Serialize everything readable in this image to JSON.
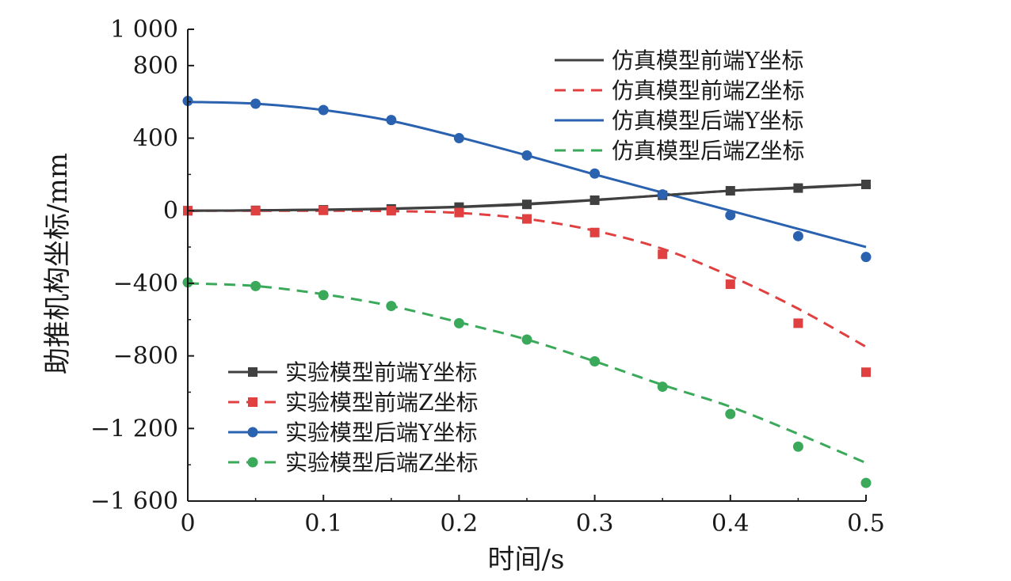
{
  "chart_data": {
    "type": "line",
    "xlabel": "时间/s",
    "ylabel": "助推机构坐标/mm",
    "xlim": [
      0,
      0.5
    ],
    "ylim": [
      -1600,
      1000
    ],
    "grid": false,
    "x_ticks": [
      0,
      0.1,
      0.2,
      0.3,
      0.4,
      0.5
    ],
    "x_tick_labels": [
      "0",
      "0.1",
      "0.2",
      "0.3",
      "0.4",
      "0.5"
    ],
    "y_ticks": [
      1000,
      800,
      400,
      0,
      -400,
      -800,
      -1200,
      -1600
    ],
    "y_tick_labels": [
      "1 000",
      "800",
      "400",
      "0",
      "−400",
      "−800",
      "−1 200",
      "−1 600"
    ],
    "legends": [
      {
        "placement": "top-right",
        "series": [
          0,
          1,
          2,
          3
        ]
      },
      {
        "placement": "bottom-left",
        "series": [
          4,
          5,
          6,
          7
        ]
      }
    ],
    "series": [
      {
        "name": "仿真模型前端Y坐标",
        "kind": "line",
        "color": "#404040",
        "dash": "solid",
        "x": [
          0,
          0.05,
          0.1,
          0.15,
          0.2,
          0.25,
          0.3,
          0.35,
          0.4,
          0.45,
          0.5
        ],
        "y": [
          0,
          2,
          6,
          12,
          22,
          38,
          60,
          85,
          110,
          128,
          145
        ]
      },
      {
        "name": "仿真模型前端Z坐标",
        "kind": "line",
        "color": "#e04040",
        "dash": "dashed",
        "x": [
          0,
          0.05,
          0.1,
          0.15,
          0.2,
          0.25,
          0.3,
          0.35,
          0.4,
          0.45,
          0.5
        ],
        "y": [
          0,
          0,
          0,
          -2,
          -12,
          -45,
          -110,
          -210,
          -360,
          -540,
          -750
        ]
      },
      {
        "name": "仿真模型后端Y坐标",
        "kind": "line",
        "color": "#2a62b0",
        "dash": "solid",
        "x": [
          0,
          0.05,
          0.1,
          0.15,
          0.2,
          0.25,
          0.3,
          0.35,
          0.4,
          0.45,
          0.5
        ],
        "y": [
          600,
          590,
          555,
          495,
          405,
          305,
          200,
          100,
          0,
          -100,
          -200
        ]
      },
      {
        "name": "仿真模型后端Z坐标",
        "kind": "line",
        "color": "#3aaa5a",
        "dash": "dashed",
        "x": [
          0,
          0.05,
          0.1,
          0.15,
          0.2,
          0.25,
          0.3,
          0.35,
          0.4,
          0.45,
          0.5
        ],
        "y": [
          -400,
          -415,
          -460,
          -525,
          -615,
          -710,
          -830,
          -960,
          -1080,
          -1230,
          -1390
        ]
      },
      {
        "name": "实验模型前端Y坐标",
        "kind": "line-marker",
        "marker": "square",
        "color": "#404040",
        "dash": "solid",
        "x": [
          0,
          0.05,
          0.1,
          0.15,
          0.2,
          0.25,
          0.3,
          0.35,
          0.4,
          0.45,
          0.5
        ],
        "y": [
          0,
          2,
          5,
          10,
          20,
          35,
          58,
          85,
          110,
          125,
          145
        ]
      },
      {
        "name": "实验模型前端Z坐标",
        "kind": "marker",
        "marker": "square",
        "color": "#e04040",
        "dash": "dashed",
        "x": [
          0,
          0.05,
          0.1,
          0.15,
          0.2,
          0.25,
          0.3,
          0.35,
          0.4,
          0.45,
          0.5
        ],
        "y": [
          0,
          0,
          2,
          0,
          -10,
          -45,
          -120,
          -240,
          -405,
          -620,
          -890
        ]
      },
      {
        "name": "实验模型后端Y坐标",
        "kind": "marker",
        "marker": "circle",
        "color": "#2a62b0",
        "dash": "solid",
        "x": [
          0,
          0.05,
          0.1,
          0.15,
          0.2,
          0.25,
          0.3,
          0.35,
          0.4,
          0.45,
          0.5
        ],
        "y": [
          605,
          590,
          555,
          500,
          400,
          305,
          205,
          90,
          -25,
          -140,
          -255
        ]
      },
      {
        "name": "实验模型后端Z坐标",
        "kind": "marker",
        "marker": "circle",
        "color": "#3aaa5a",
        "dash": "dashed",
        "x": [
          0,
          0.05,
          0.1,
          0.15,
          0.2,
          0.25,
          0.3,
          0.35,
          0.4,
          0.45,
          0.5
        ],
        "y": [
          -395,
          -415,
          -465,
          -525,
          -620,
          -710,
          -830,
          -970,
          -1120,
          -1300,
          -1500
        ]
      }
    ]
  }
}
